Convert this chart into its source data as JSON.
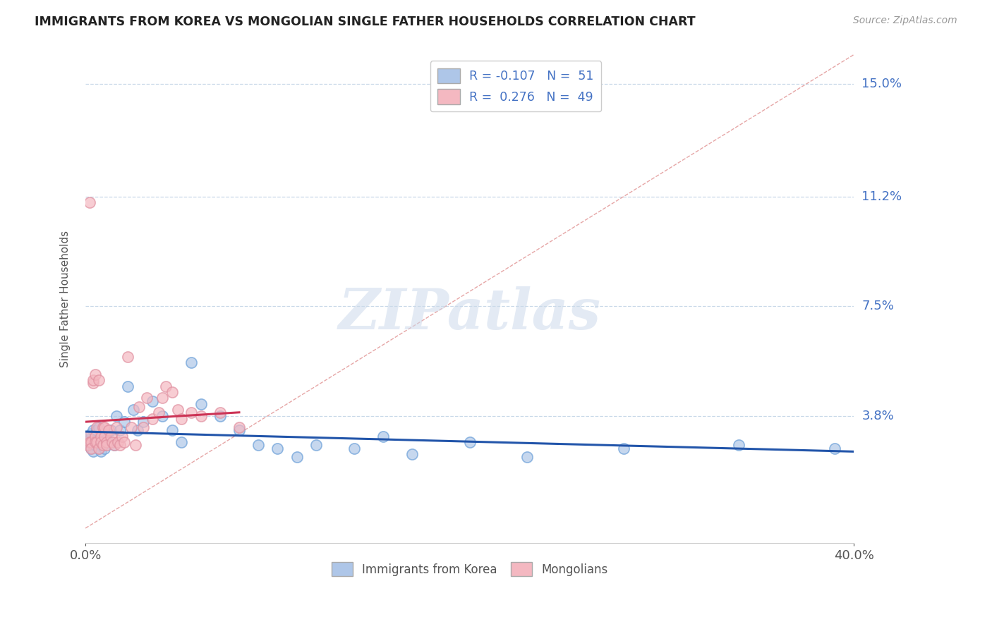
{
  "title": "IMMIGRANTS FROM KOREA VS MONGOLIAN SINGLE FATHER HOUSEHOLDS CORRELATION CHART",
  "source": "Source: ZipAtlas.com",
  "xlim": [
    0.0,
    0.4
  ],
  "ylim": [
    -0.005,
    0.16
  ],
  "ylabel_label": "Single Father Households",
  "ylabel_values": [
    0.15,
    0.112,
    0.075,
    0.038
  ],
  "ylabel_ticks": [
    "15.0%",
    "11.2%",
    "7.5%",
    "3.8%"
  ],
  "xtick_vals": [
    0.0,
    0.4
  ],
  "xtick_labels": [
    "0.0%",
    "40.0%"
  ],
  "legend_items": [
    {
      "label": "R = -0.107   N =  51",
      "color": "#aec6e8"
    },
    {
      "label": "R =  0.276   N =  49",
      "color": "#f4b8c1"
    }
  ],
  "watermark": "ZIPatlas",
  "korea_color": "#aec6e8",
  "mongolia_color": "#f4b8c1",
  "korea_edge_color": "#6a9fd8",
  "mongolia_edge_color": "#e090a0",
  "korea_line_color": "#2255aa",
  "mongolia_line_color": "#cc3355",
  "diag_line_color": "#e09090",
  "grid_color": "#c8d8e8",
  "korea_scatter_x": [
    0.001,
    0.001,
    0.002,
    0.002,
    0.003,
    0.003,
    0.004,
    0.004,
    0.005,
    0.005,
    0.006,
    0.006,
    0.007,
    0.007,
    0.008,
    0.008,
    0.009,
    0.009,
    0.01,
    0.01,
    0.011,
    0.012,
    0.013,
    0.015,
    0.016,
    0.018,
    0.02,
    0.022,
    0.025,
    0.027,
    0.03,
    0.035,
    0.04,
    0.045,
    0.05,
    0.055,
    0.06,
    0.07,
    0.08,
    0.09,
    0.1,
    0.11,
    0.12,
    0.14,
    0.155,
    0.17,
    0.2,
    0.23,
    0.28,
    0.34,
    0.39
  ],
  "korea_scatter_y": [
    0.031,
    0.029,
    0.03,
    0.028,
    0.032,
    0.027,
    0.033,
    0.026,
    0.031,
    0.028,
    0.033,
    0.029,
    0.027,
    0.034,
    0.028,
    0.026,
    0.032,
    0.029,
    0.031,
    0.027,
    0.03,
    0.029,
    0.033,
    0.028,
    0.038,
    0.033,
    0.036,
    0.048,
    0.04,
    0.033,
    0.036,
    0.043,
    0.038,
    0.033,
    0.029,
    0.056,
    0.042,
    0.038,
    0.033,
    0.028,
    0.027,
    0.024,
    0.028,
    0.027,
    0.031,
    0.025,
    0.029,
    0.024,
    0.027,
    0.028,
    0.027
  ],
  "mongolia_scatter_x": [
    0.001,
    0.001,
    0.002,
    0.002,
    0.003,
    0.003,
    0.004,
    0.004,
    0.005,
    0.005,
    0.005,
    0.006,
    0.006,
    0.007,
    0.007,
    0.008,
    0.008,
    0.009,
    0.009,
    0.01,
    0.01,
    0.011,
    0.011,
    0.012,
    0.013,
    0.014,
    0.015,
    0.016,
    0.017,
    0.018,
    0.019,
    0.02,
    0.022,
    0.024,
    0.026,
    0.028,
    0.03,
    0.032,
    0.035,
    0.038,
    0.04,
    0.042,
    0.045,
    0.048,
    0.05,
    0.055,
    0.06,
    0.07,
    0.08
  ],
  "mongolia_scatter_y": [
    0.031,
    0.028,
    0.029,
    0.11,
    0.029,
    0.027,
    0.049,
    0.05,
    0.031,
    0.029,
    0.052,
    0.034,
    0.029,
    0.027,
    0.05,
    0.031,
    0.029,
    0.034,
    0.028,
    0.034,
    0.031,
    0.029,
    0.028,
    0.033,
    0.031,
    0.029,
    0.028,
    0.034,
    0.029,
    0.028,
    0.031,
    0.029,
    0.058,
    0.034,
    0.028,
    0.041,
    0.034,
    0.044,
    0.037,
    0.039,
    0.044,
    0.048,
    0.046,
    0.04,
    0.037,
    0.039,
    0.038,
    0.039,
    0.034
  ]
}
